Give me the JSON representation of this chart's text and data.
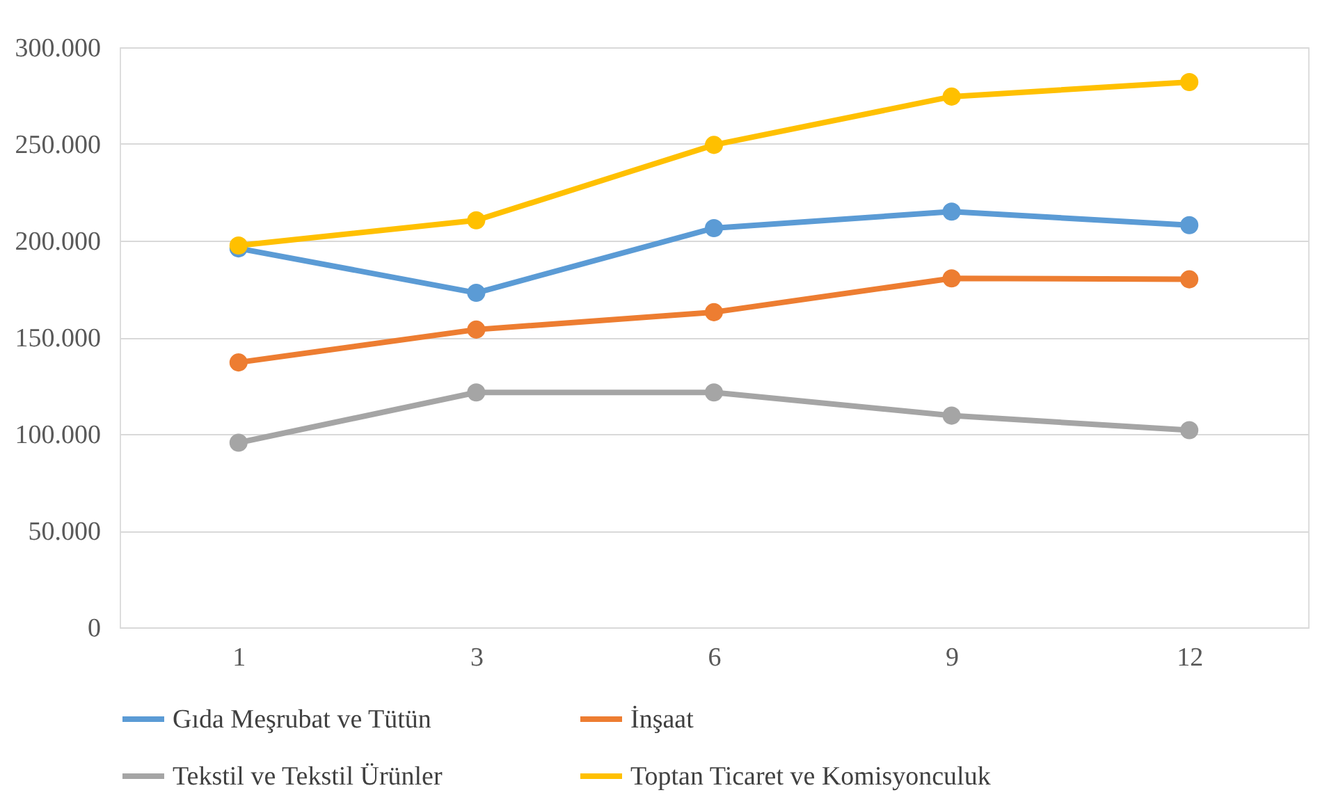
{
  "chart_data": {
    "type": "line",
    "categories": [
      "1",
      "3",
      "6",
      "9",
      "12"
    ],
    "series": [
      {
        "name": "Gıda Meşrubat ve Tütün",
        "color": "#5b9bd5",
        "values": [
          196000,
          173000,
          206500,
          215000,
          208000
        ]
      },
      {
        "name": "İnşaat",
        "color": "#ed7d31",
        "values": [
          137000,
          154000,
          163000,
          180500,
          180000
        ]
      },
      {
        "name": "Tekstil ve Tekstil Ürünler",
        "color": "#a5a5a5",
        "values": [
          95500,
          121500,
          121500,
          109500,
          102000
        ]
      },
      {
        "name": "Toptan Ticaret ve Komisyonculuk",
        "color": "#ffc000",
        "values": [
          197500,
          210500,
          249500,
          274500,
          282000
        ]
      }
    ],
    "ylim": [
      0,
      300000
    ],
    "yticks": [
      0,
      {
        "value": 50000,
        "label": "50.000"
      },
      {
        "value": 100000,
        "label": "100.000"
      },
      {
        "value": 150000,
        "label": "150.000"
      },
      {
        "value": 200000,
        "label": "200.000"
      },
      {
        "value": 250000,
        "label": "250.000"
      },
      {
        "value": 300000,
        "label": "300.000"
      }
    ],
    "grid": "y",
    "legend": "bottom",
    "marker": "circle",
    "line_style": "solid"
  }
}
